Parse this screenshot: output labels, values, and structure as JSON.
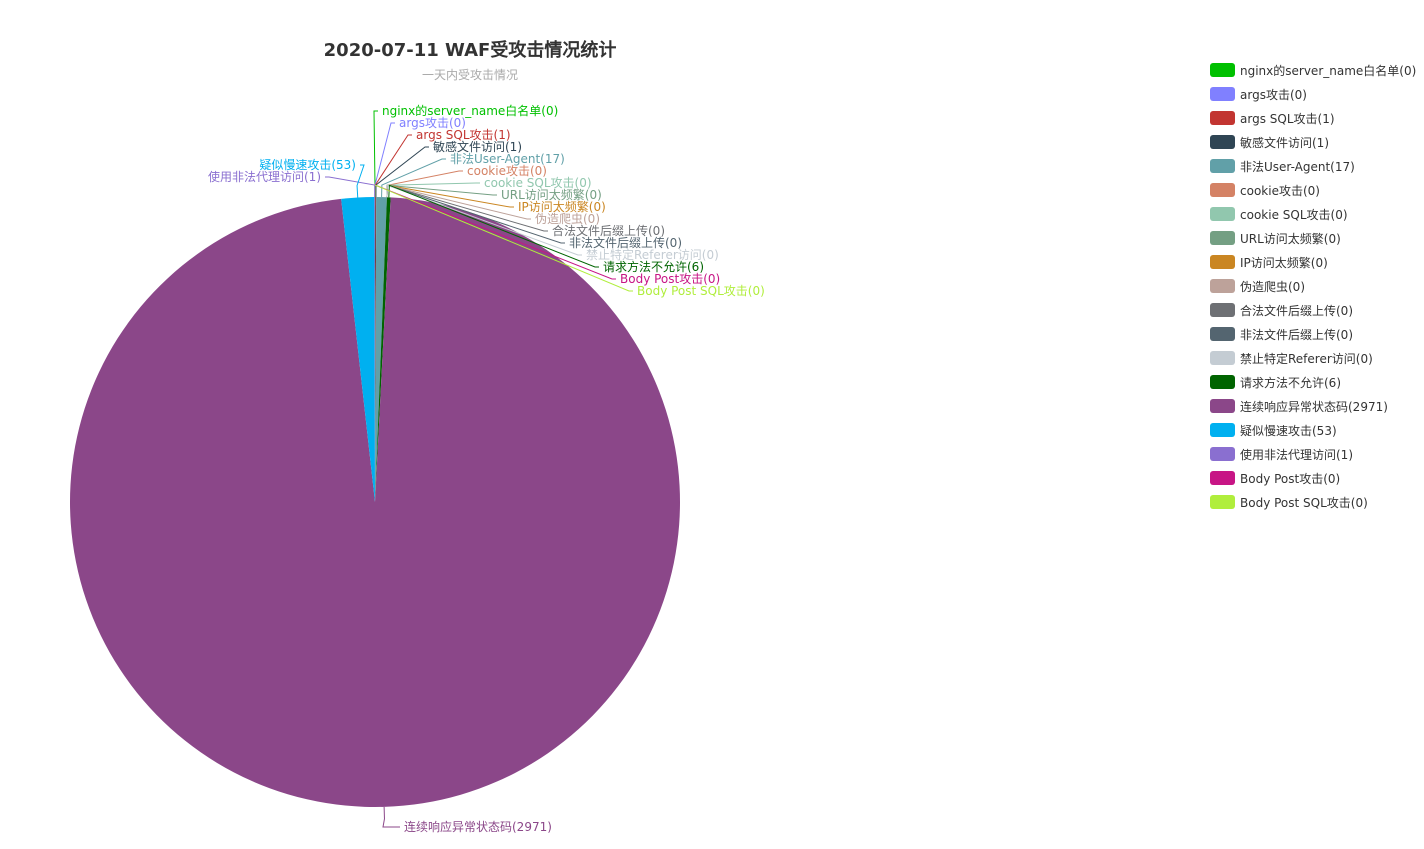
{
  "chart_data": {
    "type": "pie",
    "title": "2020-07-11 WAF受攻击情况统计",
    "subtitle": "一天内受攻击情况",
    "legend_position": "right",
    "slices": [
      {
        "label": "nginx的server_name白名单(0)",
        "value": 0,
        "color": "#00c000"
      },
      {
        "label": "args攻击(0)",
        "value": 0,
        "color": "#8080ff"
      },
      {
        "label": "args SQL攻击(1)",
        "value": 1,
        "color": "#c23531"
      },
      {
        "label": "敏感文件访问(1)",
        "value": 1,
        "color": "#2f4554"
      },
      {
        "label": "非法User-Agent(17)",
        "value": 17,
        "color": "#61a0a8"
      },
      {
        "label": "cookie攻击(0)",
        "value": 0,
        "color": "#d48265"
      },
      {
        "label": "cookie SQL攻击(0)",
        "value": 0,
        "color": "#91c7ae"
      },
      {
        "label": "URL访问太频繁(0)",
        "value": 0,
        "color": "#749f83"
      },
      {
        "label": "IP访问太频繁(0)",
        "value": 0,
        "color": "#ca8622"
      },
      {
        "label": "伪造爬虫(0)",
        "value": 0,
        "color": "#bda29a"
      },
      {
        "label": "合法文件后缀上传(0)",
        "value": 0,
        "color": "#6e7074"
      },
      {
        "label": "非法文件后缀上传(0)",
        "value": 0,
        "color": "#546570"
      },
      {
        "label": "禁止特定Referer访问(0)",
        "value": 0,
        "color": "#c4ccd3"
      },
      {
        "label": "请求方法不允许(6)",
        "value": 6,
        "color": "#006400"
      },
      {
        "label": "连续响应异常状态码(2971)",
        "value": 2971,
        "color": "#8b4789"
      },
      {
        "label": "疑似慢速攻击(53)",
        "value": 53,
        "color": "#00b0f0"
      },
      {
        "label": "使用非法代理访问(1)",
        "value": 1,
        "color": "#8a6fd0"
      },
      {
        "label": "Body Post攻击(0)",
        "value": 0,
        "color": "#c71585"
      },
      {
        "label": "Body Post SQL攻击(0)",
        "value": 0,
        "color": "#b0ee3c"
      }
    ]
  }
}
